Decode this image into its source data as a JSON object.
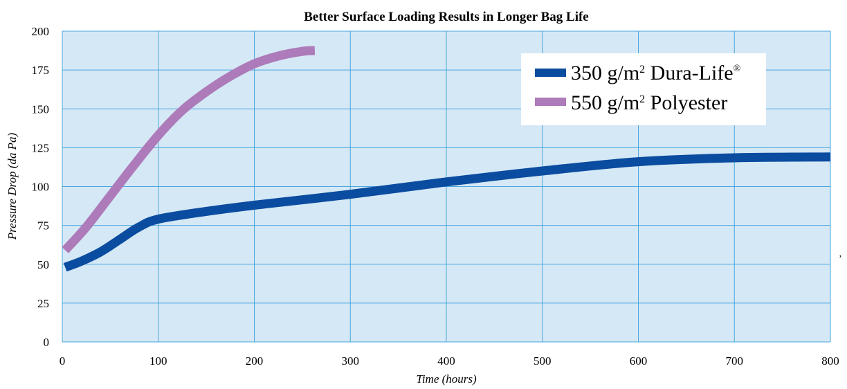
{
  "chart_data": {
    "type": "line",
    "title": "Better Surface Loading Results in Longer Bag Life",
    "xlabel": "Time (hours)",
    "ylabel": "Pressure Drop (da Pa)",
    "xlim": [
      0,
      800
    ],
    "ylim": [
      0,
      200
    ],
    "x_ticks": [
      "0",
      "100",
      "200",
      "300",
      "400",
      "500",
      "600",
      "700",
      "800"
    ],
    "y_ticks": [
      "0",
      "25",
      "50",
      "75",
      "100",
      "125",
      "150",
      "175",
      "200"
    ],
    "grid": true,
    "legend_position": "top-right",
    "background_color": "#d5e8f6",
    "grid_color": "#4aa6de",
    "series": [
      {
        "name": "350 g/m2 Dura-Life®",
        "legend_main": "350 g/m",
        "legend_sup": "2",
        "legend_rest": " Dura-Life",
        "legend_reg": "®",
        "color": "#0a4c9f",
        "x": [
          3,
          20,
          40,
          60,
          80,
          100,
          150,
          200,
          300,
          400,
          500,
          600,
          700,
          800
        ],
        "y": [
          48,
          52,
          58,
          66,
          74,
          79,
          84,
          88,
          95,
          103,
          110,
          116,
          118.5,
          119
        ]
      },
      {
        "name": "550 g/m2 Polyester",
        "legend_main": "550 g/m",
        "legend_sup": "2",
        "legend_rest": " Polyester",
        "color": "#ad7bb9",
        "x": [
          3,
          25,
          50,
          75,
          100,
          125,
          150,
          175,
          200,
          225,
          250,
          263
        ],
        "y": [
          59,
          74,
          94,
          114,
          133,
          149,
          161,
          171,
          179,
          184,
          187,
          187.5
        ]
      }
    ]
  },
  "stray_mark": "’"
}
